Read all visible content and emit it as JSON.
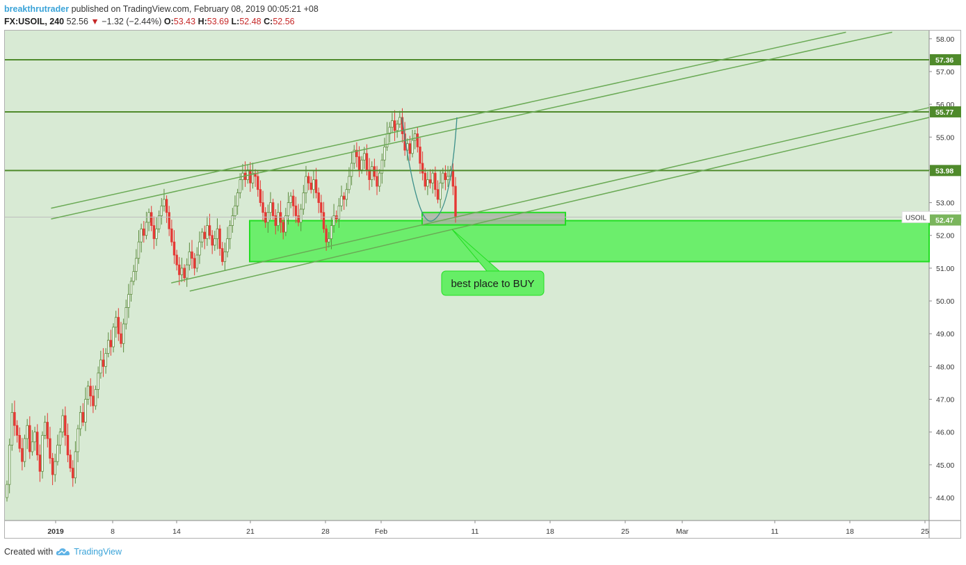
{
  "header": {
    "author": "breakthrutrader",
    "published": " published on TradingView.com, February 08, 2019 00:05:21 +08",
    "symbol": "FX:USOIL, 240",
    "last": "52.56",
    "change_arrow": "▼",
    "change": "−1.32 (−2.44%)",
    "o_label": "O:",
    "o": "53.43",
    "h_label": "H:",
    "h": "53.69",
    "l_label": "L:",
    "l": "52.48",
    "c_label": "C:",
    "c": "52.56"
  },
  "footer": {
    "created": "Created with",
    "brand": "TradingView",
    "logo_icon": "tradingview-cloud-icon"
  },
  "colors": {
    "background": "#d8ead4",
    "up": "#5b8a3c",
    "down": "#e53935",
    "hline": "#4f8a2b",
    "channel": "#6aaa55",
    "zone_fill": "#66ee66",
    "zone_border": "#22dd22",
    "label_fill": "#66ee66"
  },
  "chart_data": {
    "type": "candlestick",
    "symbol": "USOIL",
    "timeframe": "240",
    "y_ticks": [
      "44.00",
      "45.00",
      "46.00",
      "47.00",
      "48.00",
      "49.00",
      "50.00",
      "51.00",
      "52.00",
      "53.00",
      "54.00",
      "55.00",
      "56.00",
      "57.00",
      "58.00"
    ],
    "ylim": [
      43.3,
      58.25
    ],
    "x_ticks": [
      "2019",
      "8",
      "14",
      "21",
      "28",
      "Feb",
      "11",
      "18",
      "25",
      "Mar",
      "11",
      "18",
      "25"
    ],
    "x_tick_bold": [
      "2019"
    ],
    "horizontal_levels": [
      {
        "value": 57.36,
        "label": "57.36"
      },
      {
        "value": 55.77,
        "label": "55.77"
      },
      {
        "value": 53.98,
        "label": "53.98"
      }
    ],
    "price_labels": [
      {
        "name": "USOIL",
        "value": 52.56,
        "label": "52.56"
      },
      {
        "value": 52.47,
        "label": "52.47"
      }
    ],
    "annotation": "best place to BUY",
    "closes": [
      44.4,
      45.6,
      46.6,
      46.2,
      45.9,
      45.5,
      45.1,
      45.8,
      46.2,
      45.4,
      45.7,
      46.0,
      45.3,
      44.8,
      45.9,
      46.3,
      45.8,
      45.2,
      44.7,
      45.1,
      45.6,
      46.0,
      46.5,
      45.9,
      45.3,
      44.9,
      44.6,
      45.4,
      46.1,
      46.6,
      46.3,
      47.0,
      47.4,
      47.1,
      46.8,
      47.3,
      47.8,
      48.2,
      48.0,
      48.4,
      48.8,
      48.6,
      49.2,
      49.5,
      49.0,
      48.7,
      49.3,
      49.8,
      50.2,
      50.6,
      50.9,
      51.3,
      51.8,
      52.2,
      52.0,
      52.4,
      52.7,
      52.3,
      51.9,
      52.2,
      52.6,
      52.9,
      53.1,
      52.7,
      52.2,
      51.8,
      51.4,
      51.1,
      50.8,
      51.0,
      50.7,
      51.1,
      51.5,
      51.3,
      51.0,
      51.4,
      51.8,
      52.1,
      51.9,
      52.3,
      52.0,
      51.7,
      51.9,
      52.2,
      51.6,
      51.2,
      51.5,
      51.9,
      52.3,
      52.6,
      52.9,
      53.3,
      53.7,
      53.9,
      53.7,
      54.0,
      53.6,
      53.9,
      53.8,
      53.4,
      53.0,
      52.7,
      52.4,
      52.7,
      53.0,
      52.6,
      52.3,
      52.7,
      52.4,
      52.1,
      52.6,
      53.0,
      53.2,
      52.9,
      52.6,
      52.4,
      52.8,
      53.3,
      53.8,
      53.6,
      53.4,
      53.7,
      53.3,
      53.0,
      52.7,
      52.2,
      51.8,
      51.9,
      52.3,
      52.6,
      52.5,
      52.9,
      53.2,
      53.1,
      53.4,
      53.8,
      54.2,
      54.6,
      54.4,
      54.0,
      54.3,
      54.5,
      54.0,
      53.7,
      54.1,
      53.8,
      53.5,
      53.9,
      54.3,
      54.7,
      55.1,
      55.3,
      55.5,
      55.2,
      55.4,
      55.6,
      55.1,
      54.6,
      54.8,
      54.5,
      54.9,
      55.1,
      54.7,
      54.2,
      53.9,
      53.5,
      53.7,
      53.6,
      53.9,
      53.4,
      53.1,
      53.6,
      53.9,
      53.7,
      53.8,
      54.0,
      53.5,
      52.56
    ],
    "support_zone": {
      "from": 51.2,
      "to": 52.45
    },
    "buy_box": {
      "from": 52.32,
      "to": 52.7
    },
    "channels": [
      {
        "p1": [
          0.05,
          52.83
        ],
        "p2": [
          0.91,
          58.2
        ]
      },
      {
        "p1": [
          0.05,
          52.5
        ],
        "p2": [
          0.96,
          58.2
        ]
      },
      {
        "p1": [
          0.18,
          50.55
        ],
        "p2": [
          1.0,
          55.9
        ]
      },
      {
        "p1": [
          0.2,
          50.3
        ],
        "p2": [
          1.0,
          55.6
        ]
      }
    ]
  }
}
